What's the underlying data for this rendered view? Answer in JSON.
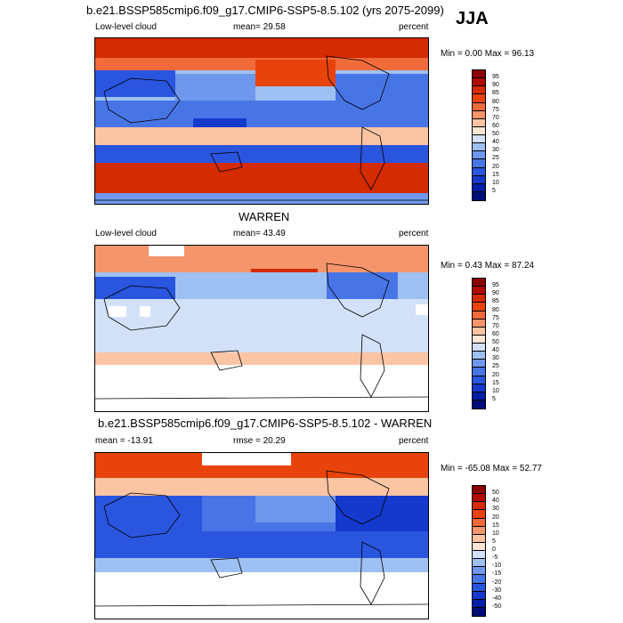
{
  "header": {
    "main_title": "b.e21.BSSP585cmip6.f09_g17.CMIP6-SSP5-8.5.102 (yrs 2075-2099)",
    "season": "JJA"
  },
  "panels": [
    {
      "variable": "Low-level cloud",
      "stat": "mean=  29.58",
      "units": "percent",
      "minmax": "Min =   0.00 Max =  96.13",
      "colorbar_labels": [
        "95",
        "90",
        "85",
        "80",
        "75",
        "70",
        "60",
        "50",
        "40",
        "30",
        "25",
        "20",
        "15",
        "10",
        "5"
      ],
      "colors": [
        "#8b0000",
        "#b00a00",
        "#d42b00",
        "#e8430c",
        "#f06a3a",
        "#f5956c",
        "#fbc4a3",
        "#fde6d5",
        "#d2e1f8",
        "#9fc0f2",
        "#6f98ec",
        "#4875e6",
        "#2a55df",
        "#1439cc",
        "#001ea8",
        "#000c78"
      ]
    },
    {
      "title": "WARREN",
      "variable": "Low-level cloud",
      "stat": "mean=  43.49",
      "units": "percent",
      "minmax": "Min =   0.43 Max =  87.24",
      "colorbar_labels": [
        "95",
        "90",
        "85",
        "80",
        "75",
        "70",
        "60",
        "50",
        "40",
        "30",
        "25",
        "20",
        "15",
        "10",
        "5"
      ],
      "colors": [
        "#8b0000",
        "#b00a00",
        "#d42b00",
        "#e8430c",
        "#f06a3a",
        "#f5956c",
        "#fbc4a3",
        "#fde6d5",
        "#d2e1f8",
        "#9fc0f2",
        "#6f98ec",
        "#4875e6",
        "#2a55df",
        "#1439cc",
        "#001ea8",
        "#000c78"
      ]
    },
    {
      "title": "b.e21.BSSP585cmip6.f09_g17.CMIP6-SSP5-8.5.102 - WARREN",
      "stat_left": "mean = -13.91",
      "stat_mid": "rmse =  20.29",
      "units": "percent",
      "minmax": "Min = -65.08 Max =  52.77",
      "colorbar_labels": [
        "50",
        "40",
        "30",
        "20",
        "15",
        "10",
        "5",
        "0",
        "-5",
        "-10",
        "-15",
        "-20",
        "-30",
        "-40",
        "-50"
      ],
      "colors": [
        "#8b0000",
        "#b00a00",
        "#d42b00",
        "#e8430c",
        "#f06a3a",
        "#f5956c",
        "#fbc4a3",
        "#fde6d5",
        "#d2e1f8",
        "#9fc0f2",
        "#6f98ec",
        "#4875e6",
        "#2a55df",
        "#1439cc",
        "#001ea8",
        "#000c78"
      ]
    }
  ]
}
